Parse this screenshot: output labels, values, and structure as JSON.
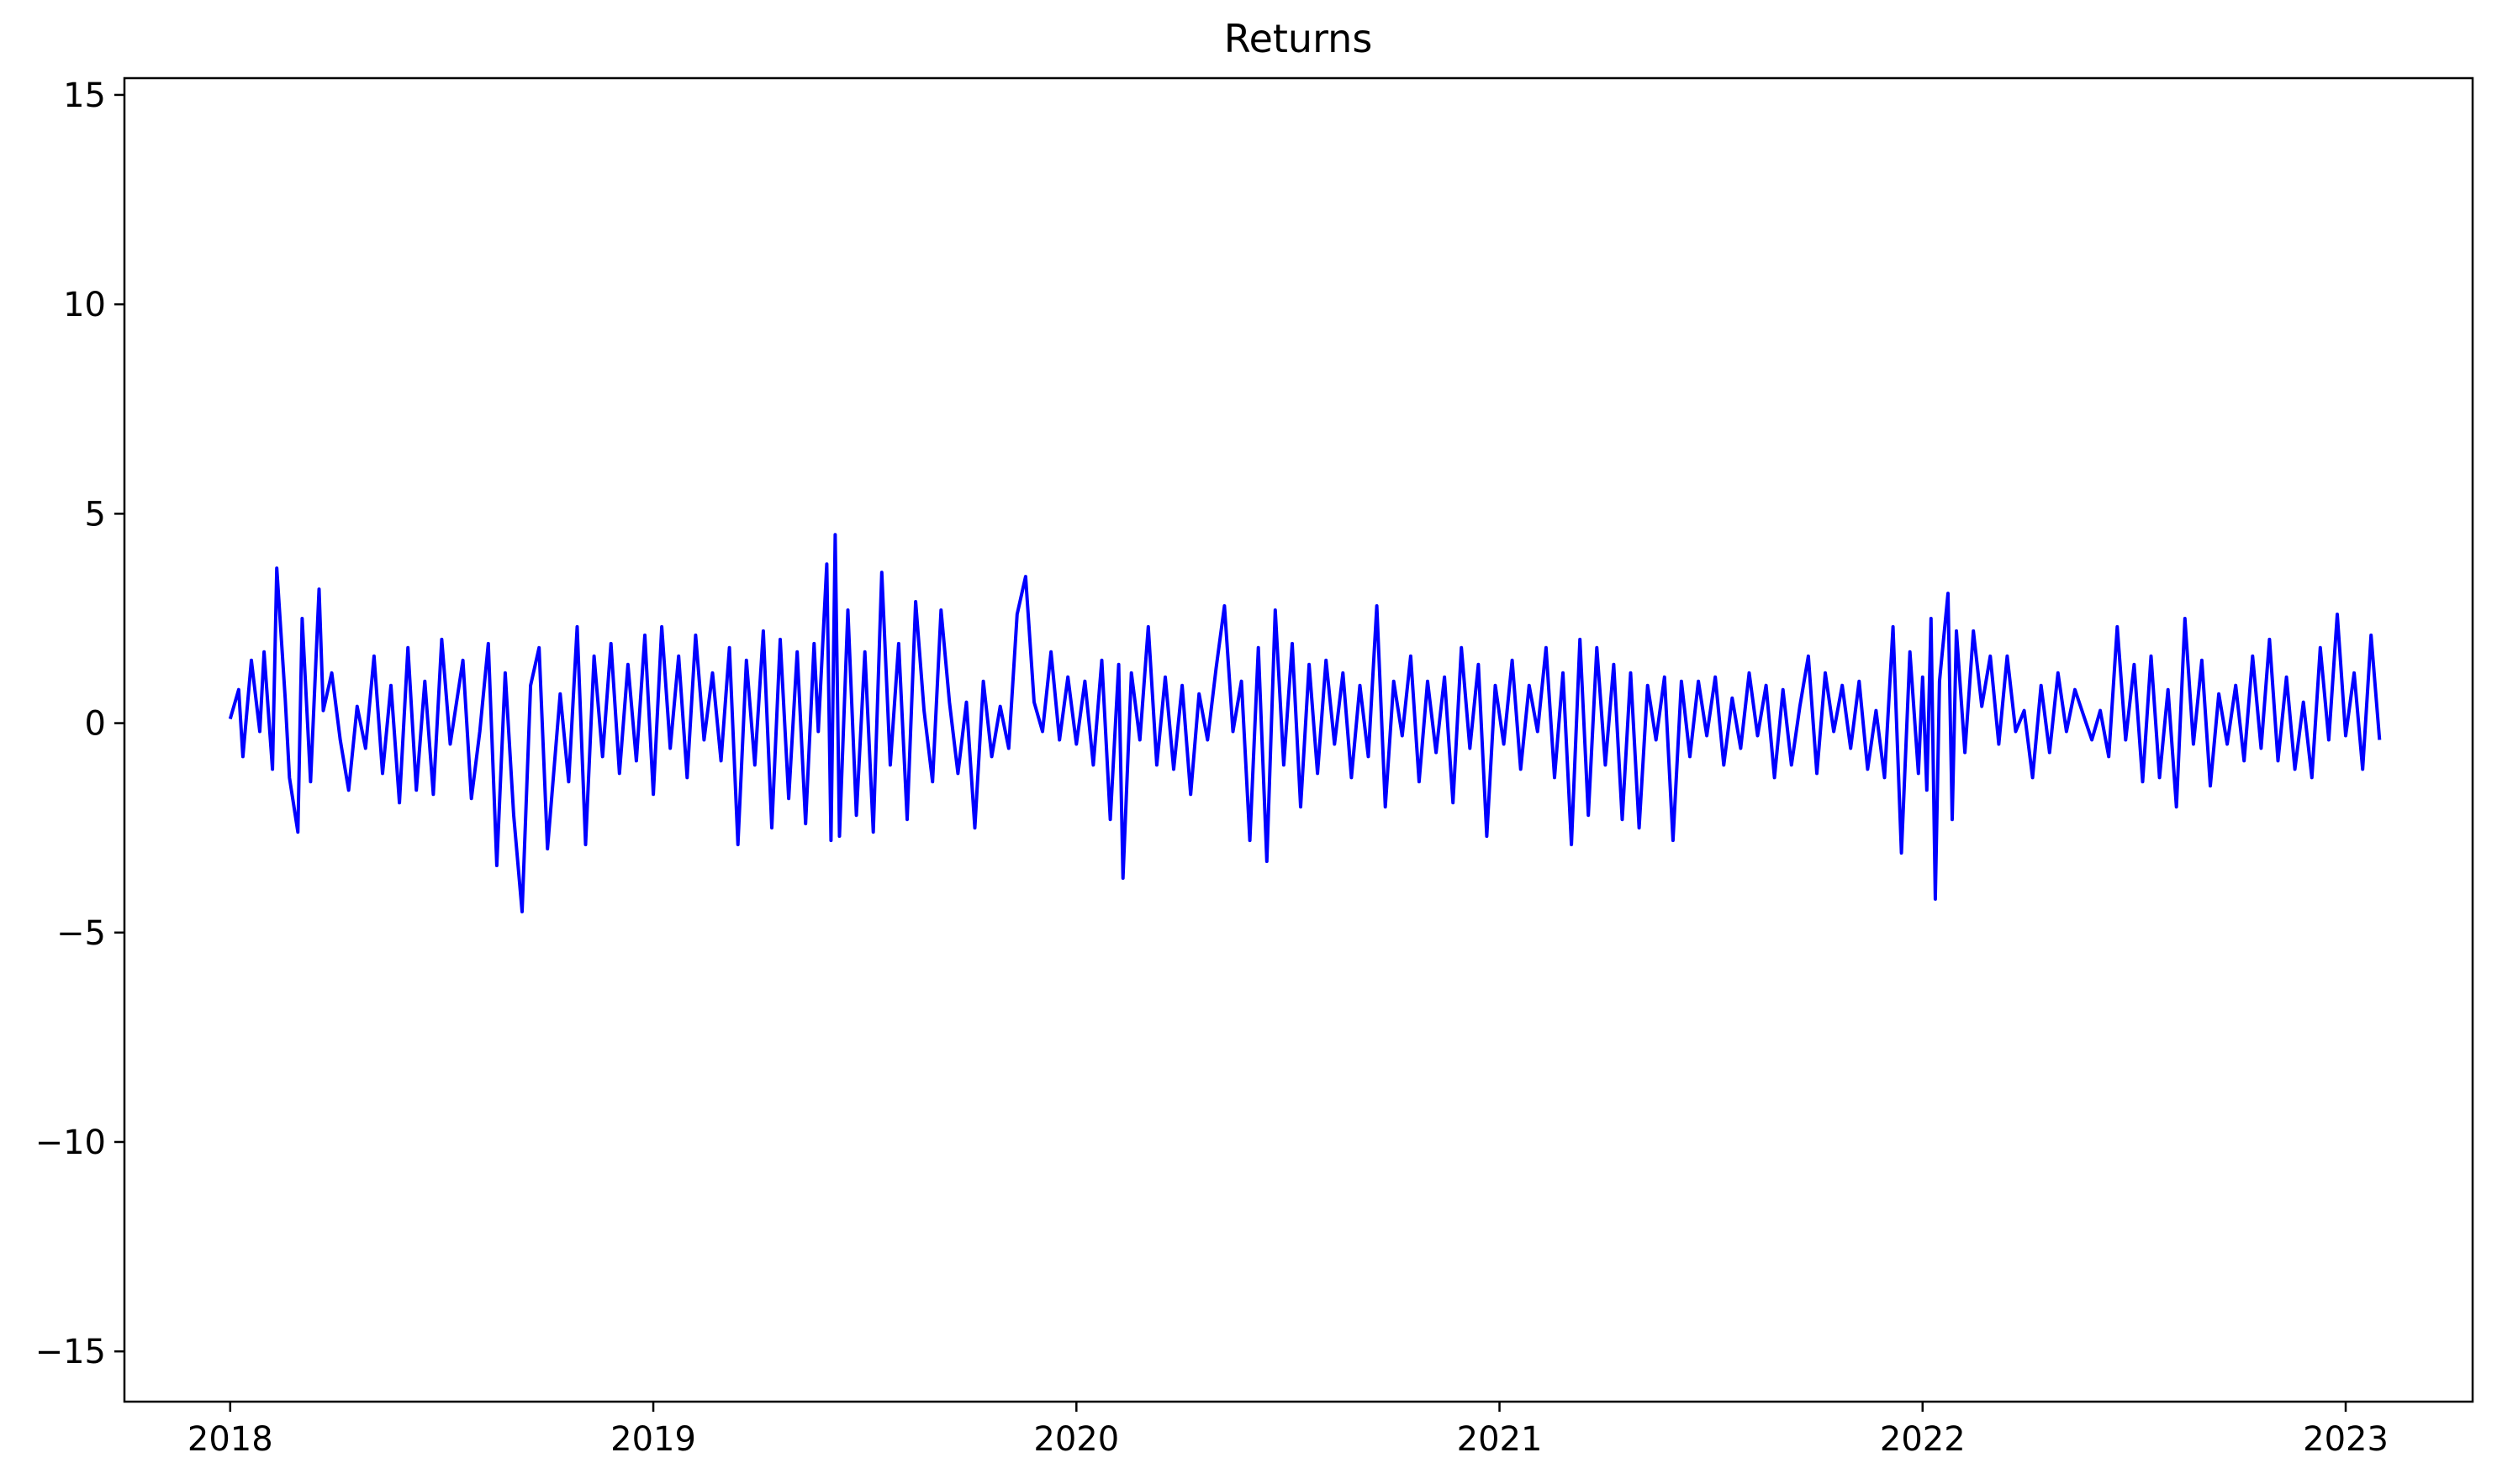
{
  "chart_data": {
    "type": "line",
    "title": "Returns",
    "xlabel": "",
    "ylabel": "",
    "xlim": [
      2017.75,
      2023.3
    ],
    "ylim": [
      -16.2,
      15.4
    ],
    "x_ticks": [
      2018,
      2019,
      2020,
      2021,
      2022,
      2023
    ],
    "x_tick_labels": [
      "2018",
      "2019",
      "2020",
      "2021",
      "2022",
      "2023"
    ],
    "y_ticks": [
      15,
      10,
      5,
      0,
      -5,
      -10,
      -15
    ],
    "y_tick_labels": [
      "15",
      "10",
      "5",
      "0",
      "−5",
      "−10",
      "−15"
    ],
    "grid": false,
    "legend": "none",
    "series": [
      {
        "name": "Returns",
        "color": "#0000ff",
        "points": [
          [
            2018.0,
            0.1
          ],
          [
            2018.02,
            0.8
          ],
          [
            2018.03,
            -0.8
          ],
          [
            2018.05,
            1.5
          ],
          [
            2018.07,
            -0.2
          ],
          [
            2018.08,
            1.7
          ],
          [
            2018.1,
            -1.1
          ],
          [
            2018.11,
            3.7
          ],
          [
            2018.13,
            0.6
          ],
          [
            2018.14,
            -1.3
          ],
          [
            2018.16,
            -2.6
          ],
          [
            2018.17,
            2.5
          ],
          [
            2018.19,
            -1.4
          ],
          [
            2018.21,
            3.2
          ],
          [
            2018.22,
            0.3
          ],
          [
            2018.24,
            1.2
          ],
          [
            2018.26,
            -0.4
          ],
          [
            2018.28,
            -1.6
          ],
          [
            2018.3,
            0.4
          ],
          [
            2018.32,
            -0.6
          ],
          [
            2018.34,
            1.6
          ],
          [
            2018.36,
            -1.2
          ],
          [
            2018.38,
            0.9
          ],
          [
            2018.4,
            -1.9
          ],
          [
            2018.42,
            1.8
          ],
          [
            2018.44,
            -1.6
          ],
          [
            2018.46,
            1.0
          ],
          [
            2018.48,
            -1.7
          ],
          [
            2018.5,
            2.0
          ],
          [
            2018.52,
            -0.5
          ],
          [
            2018.55,
            1.5
          ],
          [
            2018.57,
            -1.8
          ],
          [
            2018.59,
            -0.2
          ],
          [
            2018.61,
            1.9
          ],
          [
            2018.63,
            -3.4
          ],
          [
            2018.65,
            1.2
          ],
          [
            2018.67,
            -2.2
          ],
          [
            2018.69,
            -4.5
          ],
          [
            2018.71,
            0.9
          ],
          [
            2018.73,
            1.8
          ],
          [
            2018.75,
            -3.0
          ],
          [
            2018.78,
            0.7
          ],
          [
            2018.8,
            -1.4
          ],
          [
            2018.82,
            2.3
          ],
          [
            2018.84,
            -2.9
          ],
          [
            2018.86,
            1.6
          ],
          [
            2018.88,
            -0.8
          ],
          [
            2018.9,
            1.9
          ],
          [
            2018.92,
            -1.2
          ],
          [
            2018.94,
            1.4
          ],
          [
            2018.96,
            -0.9
          ],
          [
            2018.98,
            2.1
          ],
          [
            2019.0,
            -1.7
          ],
          [
            2019.02,
            2.3
          ],
          [
            2019.04,
            -0.6
          ],
          [
            2019.06,
            1.6
          ],
          [
            2019.08,
            -1.3
          ],
          [
            2019.1,
            2.1
          ],
          [
            2019.12,
            -0.4
          ],
          [
            2019.14,
            1.2
          ],
          [
            2019.16,
            -0.9
          ],
          [
            2019.18,
            1.8
          ],
          [
            2019.2,
            -2.9
          ],
          [
            2019.22,
            1.5
          ],
          [
            2019.24,
            -1.0
          ],
          [
            2019.26,
            2.2
          ],
          [
            2019.28,
            -2.5
          ],
          [
            2019.3,
            2.0
          ],
          [
            2019.32,
            -1.8
          ],
          [
            2019.34,
            1.7
          ],
          [
            2019.36,
            -2.4
          ],
          [
            2019.38,
            1.9
          ],
          [
            2019.39,
            -0.2
          ],
          [
            2019.41,
            3.8
          ],
          [
            2019.42,
            -2.8
          ],
          [
            2019.43,
            4.5
          ],
          [
            2019.44,
            -2.7
          ],
          [
            2019.46,
            2.7
          ],
          [
            2019.48,
            -2.2
          ],
          [
            2019.5,
            1.7
          ],
          [
            2019.52,
            -2.6
          ],
          [
            2019.54,
            3.6
          ],
          [
            2019.56,
            -1.0
          ],
          [
            2019.58,
            1.9
          ],
          [
            2019.6,
            -2.3
          ],
          [
            2019.62,
            2.9
          ],
          [
            2019.64,
            0.3
          ],
          [
            2019.66,
            -1.4
          ],
          [
            2019.68,
            2.7
          ],
          [
            2019.7,
            0.5
          ],
          [
            2019.72,
            -1.2
          ],
          [
            2019.74,
            0.5
          ],
          [
            2019.76,
            -2.5
          ],
          [
            2019.78,
            1.0
          ],
          [
            2019.8,
            -0.8
          ],
          [
            2019.82,
            0.4
          ],
          [
            2019.84,
            -0.6
          ],
          [
            2019.86,
            2.6
          ],
          [
            2019.88,
            3.5
          ],
          [
            2019.9,
            0.5
          ],
          [
            2019.92,
            -0.2
          ],
          [
            2019.94,
            1.7
          ],
          [
            2019.96,
            -0.4
          ],
          [
            2019.98,
            1.1
          ],
          [
            2020.0,
            -0.5
          ],
          [
            2020.02,
            1.0
          ],
          [
            2020.04,
            -1.0
          ],
          [
            2020.06,
            1.5
          ],
          [
            2020.08,
            -2.3
          ],
          [
            2020.1,
            1.4
          ],
          [
            2020.11,
            -3.7
          ],
          [
            2020.13,
            1.2
          ],
          [
            2020.15,
            -0.4
          ],
          [
            2020.17,
            2.3
          ],
          [
            2020.19,
            -1.0
          ],
          [
            2020.21,
            1.1
          ],
          [
            2020.23,
            -1.1
          ],
          [
            2020.25,
            0.9
          ],
          [
            2020.27,
            -1.7
          ],
          [
            2020.29,
            0.7
          ],
          [
            2020.31,
            -0.4
          ],
          [
            2020.33,
            1.3
          ],
          [
            2020.35,
            2.8
          ],
          [
            2020.37,
            -0.2
          ],
          [
            2020.39,
            1.0
          ],
          [
            2020.41,
            -2.8
          ],
          [
            2020.43,
            1.8
          ],
          [
            2020.45,
            -3.3
          ],
          [
            2020.47,
            2.7
          ],
          [
            2020.49,
            -1.0
          ],
          [
            2020.51,
            1.9
          ],
          [
            2020.53,
            -2.0
          ],
          [
            2020.55,
            1.4
          ],
          [
            2020.57,
            -1.2
          ],
          [
            2020.59,
            1.5
          ],
          [
            2020.61,
            -0.5
          ],
          [
            2020.63,
            1.2
          ],
          [
            2020.65,
            -1.3
          ],
          [
            2020.67,
            0.9
          ],
          [
            2020.69,
            -0.8
          ],
          [
            2020.71,
            2.8
          ],
          [
            2020.73,
            -2.0
          ],
          [
            2020.75,
            1.0
          ],
          [
            2020.77,
            -0.3
          ],
          [
            2020.79,
            1.6
          ],
          [
            2020.81,
            -1.4
          ],
          [
            2020.83,
            1.0
          ],
          [
            2020.85,
            -0.7
          ],
          [
            2020.87,
            1.1
          ],
          [
            2020.89,
            -1.9
          ],
          [
            2020.91,
            1.8
          ],
          [
            2020.93,
            -0.6
          ],
          [
            2020.95,
            1.4
          ],
          [
            2020.97,
            -2.7
          ],
          [
            2020.99,
            0.9
          ],
          [
            2021.01,
            -0.5
          ],
          [
            2021.03,
            1.5
          ],
          [
            2021.05,
            -1.1
          ],
          [
            2021.07,
            0.9
          ],
          [
            2021.09,
            -0.2
          ],
          [
            2021.11,
            1.8
          ],
          [
            2021.13,
            -1.3
          ],
          [
            2021.15,
            1.2
          ],
          [
            2021.17,
            -2.9
          ],
          [
            2021.19,
            2.0
          ],
          [
            2021.21,
            -2.2
          ],
          [
            2021.23,
            1.8
          ],
          [
            2021.25,
            -1.0
          ],
          [
            2021.27,
            1.4
          ],
          [
            2021.29,
            -2.3
          ],
          [
            2021.31,
            1.2
          ],
          [
            2021.33,
            -2.5
          ],
          [
            2021.35,
            0.9
          ],
          [
            2021.37,
            -0.4
          ],
          [
            2021.39,
            1.1
          ],
          [
            2021.41,
            -2.8
          ],
          [
            2021.43,
            1.0
          ],
          [
            2021.45,
            -0.8
          ],
          [
            2021.47,
            1.0
          ],
          [
            2021.49,
            -0.3
          ],
          [
            2021.51,
            1.1
          ],
          [
            2021.53,
            -1.0
          ],
          [
            2021.55,
            0.6
          ],
          [
            2021.57,
            -0.6
          ],
          [
            2021.59,
            1.2
          ],
          [
            2021.61,
            -0.3
          ],
          [
            2021.63,
            0.9
          ],
          [
            2021.65,
            -1.3
          ],
          [
            2021.67,
            0.8
          ],
          [
            2021.69,
            -1.0
          ],
          [
            2021.71,
            0.4
          ],
          [
            2021.73,
            1.6
          ],
          [
            2021.75,
            -1.2
          ],
          [
            2021.77,
            1.2
          ],
          [
            2021.79,
            -0.2
          ],
          [
            2021.81,
            0.9
          ],
          [
            2021.83,
            -0.6
          ],
          [
            2021.85,
            1.0
          ],
          [
            2021.87,
            -1.1
          ],
          [
            2021.89,
            0.3
          ],
          [
            2021.91,
            -1.3
          ],
          [
            2021.93,
            2.3
          ],
          [
            2021.95,
            -3.1
          ],
          [
            2021.97,
            1.7
          ],
          [
            2021.99,
            -1.2
          ],
          [
            2022.0,
            1.1
          ],
          [
            2022.01,
            -1.6
          ],
          [
            2022.02,
            2.5
          ],
          [
            2022.03,
            -4.2
          ],
          [
            2022.04,
            1.0
          ],
          [
            2022.06,
            3.1
          ],
          [
            2022.07,
            -2.3
          ],
          [
            2022.08,
            2.2
          ],
          [
            2022.1,
            -0.7
          ],
          [
            2022.12,
            2.2
          ],
          [
            2022.14,
            0.4
          ],
          [
            2022.16,
            1.6
          ],
          [
            2022.18,
            -0.5
          ],
          [
            2022.2,
            1.6
          ],
          [
            2022.22,
            -0.2
          ],
          [
            2022.24,
            0.3
          ],
          [
            2022.26,
            -1.3
          ],
          [
            2022.28,
            0.9
          ],
          [
            2022.3,
            -0.7
          ],
          [
            2022.32,
            1.2
          ],
          [
            2022.34,
            -0.2
          ],
          [
            2022.36,
            0.8
          ],
          [
            2022.38,
            0.2
          ],
          [
            2022.4,
            -0.4
          ],
          [
            2022.42,
            0.3
          ],
          [
            2022.44,
            -0.8
          ],
          [
            2022.46,
            2.3
          ],
          [
            2022.48,
            -0.4
          ],
          [
            2022.5,
            1.4
          ],
          [
            2022.52,
            -1.4
          ],
          [
            2022.54,
            1.6
          ],
          [
            2022.56,
            -1.3
          ],
          [
            2022.58,
            0.8
          ],
          [
            2022.6,
            -2.0
          ],
          [
            2022.62,
            2.5
          ],
          [
            2022.64,
            -0.5
          ],
          [
            2022.66,
            1.5
          ],
          [
            2022.68,
            -1.5
          ],
          [
            2022.7,
            0.7
          ],
          [
            2022.72,
            -0.5
          ],
          [
            2022.74,
            0.9
          ],
          [
            2022.76,
            -0.9
          ],
          [
            2022.78,
            1.6
          ],
          [
            2022.8,
            -0.6
          ],
          [
            2022.82,
            2.0
          ],
          [
            2022.84,
            -0.9
          ],
          [
            2022.86,
            1.1
          ],
          [
            2022.88,
            -1.1
          ],
          [
            2022.9,
            0.5
          ],
          [
            2022.92,
            -1.3
          ],
          [
            2022.94,
            1.8
          ],
          [
            2022.96,
            -0.4
          ],
          [
            2022.98,
            2.6
          ],
          [
            2023.0,
            -0.3
          ],
          [
            2023.02,
            1.2
          ],
          [
            2023.04,
            -1.1
          ],
          [
            2023.06,
            2.1
          ],
          [
            2023.08,
            -0.4
          ]
        ]
      }
    ]
  }
}
